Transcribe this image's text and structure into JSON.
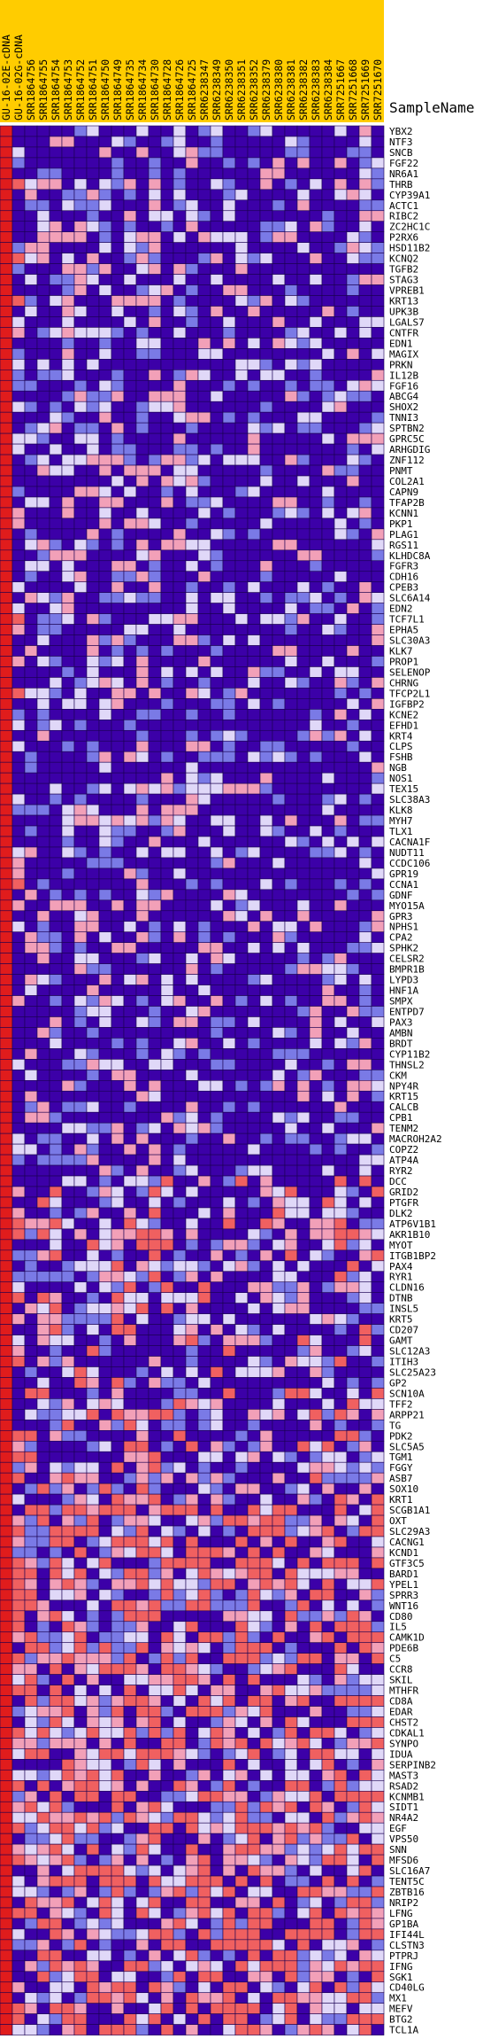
{
  "chart_data": {
    "type": "heatmap",
    "title": "",
    "corner_label": "SampleName",
    "ylabel": "",
    "color_scale": {
      "low": "#3c00a8",
      "mid_low": "#7a7ae6",
      "pale": "#e0d8f8",
      "mid_high": "#f2a0b8",
      "high": "#f06060",
      "max": "#e01c1c"
    },
    "header_color": "#ffcc00",
    "columns": [
      "GU-16-02E-cDNA",
      "GU-16-02G-cDNA",
      "SRR1864756",
      "SRR1864755",
      "SRR1864754",
      "SRR1864753",
      "SRR1864752",
      "SRR1864751",
      "SRR1864750",
      "SRR1864749",
      "SRR1864735",
      "SRR1864734",
      "SRR1864730",
      "SRR1864728",
      "SRR1864726",
      "SRR1864725",
      "SRR6238347",
      "SRR6238349",
      "SRR6238350",
      "SRR6238351",
      "SRR6238352",
      "SRR6238379",
      "SRR6238380",
      "SRR6238381",
      "SRR6238382",
      "SRR6238383",
      "SRR6238384",
      "SRR7251667",
      "SRR7251668",
      "SRR7251669",
      "SRR7251670"
    ],
    "rows": [
      "YBX2",
      "NTF3",
      "SNCB",
      "FGF22",
      "NR6A1",
      "THRB",
      "CYP39A1",
      "ACTC1",
      "RIBC2",
      "ZC2HC1C",
      "P2RX6",
      "HSD11B2",
      "KCNQ2",
      "TGFB2",
      "STAG3",
      "VPREB1",
      "KRT13",
      "UPK3B",
      "LGALS7",
      "CNTFR",
      "EDN1",
      "MAGIX",
      "PRKN",
      "IL12B",
      "FGF16",
      "ABCG4",
      "SHOX2",
      "TNNI3",
      "SPTBN2",
      "GPRC5C",
      "ARHGDIG",
      "ZNF112",
      "PNMT",
      "COL2A1",
      "CAPN9",
      "TFAP2B",
      "KCNN1",
      "PKP1",
      "PLAG1",
      "RGS11",
      "KLHDC8A",
      "FGFR3",
      "CDH16",
      "CPEB3",
      "SLC6A14",
      "EDN2",
      "TCF7L1",
      "EPHA5",
      "SLC30A3",
      "KLK7",
      "PROP1",
      "SELENOP",
      "CHRNG",
      "TFCP2L1",
      "IGFBP2",
      "KCNE2",
      "EFHD1",
      "KRT4",
      "CLPS",
      "FSHB",
      "NGB",
      "NOS1",
      "TEX15",
      "SLC38A3",
      "KLK8",
      "MYH7",
      "TLX1",
      "CACNA1F",
      "NUDT11",
      "CCDC106",
      "GPR19",
      "CCNA1",
      "GDNF",
      "MYO15A",
      "GPR3",
      "NPHS1",
      "CPA2",
      "SPHK2",
      "CELSR2",
      "BMPR1B",
      "LYPD3",
      "HNF1A",
      "SMPX",
      "ENTPD7",
      "PAX3",
      "AMBN",
      "BRDT",
      "CYP11B2",
      "THNSL2",
      "CKM",
      "NPY4R",
      "KRT15",
      "CALCB",
      "CPB1",
      "TENM2",
      "MACROH2A2",
      "COPZ2",
      "ATP4A",
      "RYR2",
      "DCC",
      "GRID2",
      "PTGFR",
      "DLK2",
      "ATP6V1B1",
      "AKR1B10",
      "MYOT",
      "ITGB1BP2",
      "PAX4",
      "RYR1",
      "CLDN16",
      "DTNB",
      "INSL5",
      "KRT5",
      "CD207",
      "GAMT",
      "SLC12A3",
      "ITIH3",
      "SLC25A23",
      "GP2",
      "SCN10A",
      "TFF2",
      "ARPP21",
      "TG",
      "PDK2",
      "SLC5A5",
      "TGM1",
      "FGGY",
      "ASB7",
      "SOX10",
      "KRT1",
      "SCGB1A1",
      "OXT",
      "SLC29A3",
      "CACNG1",
      "KCND1",
      "GTF3C5",
      "BARD1",
      "YPEL1",
      "SPRR3",
      "WNT16",
      "CD80",
      "IL5",
      "CAMK1D",
      "PDE6B",
      "C5",
      "CCR8",
      "SKIL",
      "MTHFR",
      "CD8A",
      "EDAR",
      "CHST2",
      "CDKAL1",
      "SYNPO",
      "IDUA",
      "SERPINB2",
      "MAST3",
      "RSAD2",
      "KCNMB1",
      "SIDT1",
      "NR4A2",
      "EGF",
      "VPS50",
      "SNN",
      "MFSD6",
      "SLC16A7",
      "TENT5C",
      "ZBTB16",
      "NRIP2",
      "LFNG",
      "GP1BA",
      "IFI44L",
      "CLSTN3",
      "PTPRJ",
      "IFNG",
      "SGK1",
      "CD40LG",
      "MX1",
      "MEFV",
      "BTG2",
      "TCL1A"
    ]
  }
}
